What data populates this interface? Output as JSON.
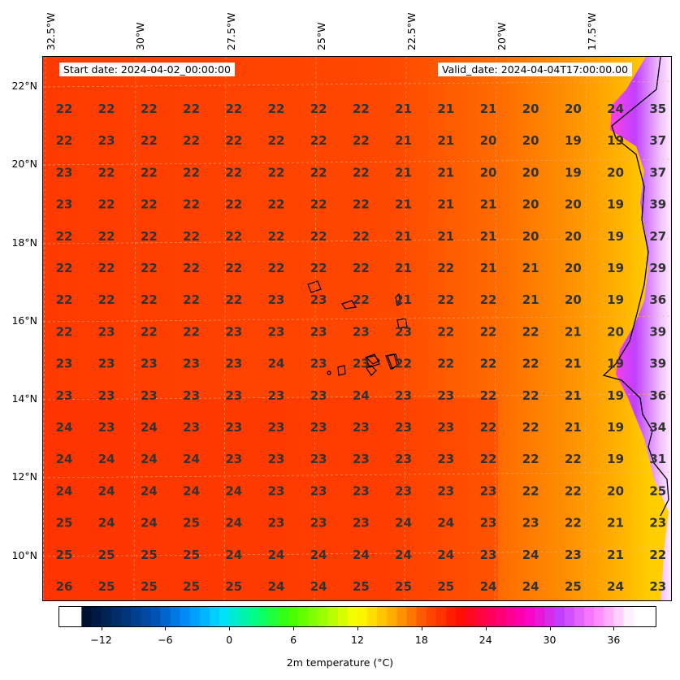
{
  "header": {
    "start_date": "Start date: 2024-04-02_00:00:00",
    "valid_date": "Valid_date: 2024-04-04T17:00:00.00"
  },
  "axes": {
    "lon_labels": [
      "32.5°W",
      "30°W",
      "27.5°W",
      "25°W",
      "22.5°W",
      "20°W",
      "17.5°W"
    ],
    "lat_labels": [
      "22°N",
      "20°N",
      "18°N",
      "16°N",
      "14°N",
      "12°N",
      "10°N"
    ]
  },
  "colorbar": {
    "label": "2m temperature ($^\\circ$C)",
    "label_display": "2m temperature (°C)",
    "ticks": [
      "−12",
      "−6",
      "0",
      "6",
      "12",
      "18",
      "24",
      "30",
      "36"
    ],
    "tick_values": [
      -12,
      -6,
      0,
      6,
      12,
      18,
      24,
      30,
      36
    ],
    "range": [
      -16,
      40
    ],
    "colors": [
      "#001030",
      "#003070",
      "#0050b0",
      "#0090ff",
      "#00e0ff",
      "#00ff80",
      "#40ff00",
      "#a0ff00",
      "#ffff00",
      "#ffb000",
      "#ff5000",
      "#ff1000",
      "#ff0060",
      "#ff00c0",
      "#c040ff",
      "#ff80ff",
      "#fff0ff"
    ]
  },
  "grid_values": {
    "rows": [
      [
        "22",
        "22",
        "22",
        "22",
        "22",
        "22",
        "22",
        "22",
        "21",
        "21",
        "21",
        "20",
        "20",
        "24",
        "35"
      ],
      [
        "22",
        "23",
        "22",
        "22",
        "22",
        "22",
        "22",
        "22",
        "21",
        "21",
        "20",
        "20",
        "19",
        "19",
        "37"
      ],
      [
        "23",
        "22",
        "22",
        "22",
        "22",
        "22",
        "22",
        "22",
        "21",
        "21",
        "20",
        "20",
        "19",
        "20",
        "37"
      ],
      [
        "23",
        "22",
        "22",
        "22",
        "22",
        "22",
        "22",
        "22",
        "21",
        "21",
        "21",
        "20",
        "20",
        "19",
        "39"
      ],
      [
        "22",
        "22",
        "22",
        "22",
        "22",
        "22",
        "22",
        "22",
        "21",
        "21",
        "21",
        "20",
        "20",
        "19",
        "27"
      ],
      [
        "22",
        "22",
        "22",
        "22",
        "22",
        "22",
        "22",
        "22",
        "21",
        "22",
        "21",
        "21",
        "20",
        "19",
        "29"
      ],
      [
        "22",
        "22",
        "22",
        "22",
        "22",
        "23",
        "23",
        "22",
        "21",
        "22",
        "22",
        "21",
        "20",
        "19",
        "36"
      ],
      [
        "22",
        "23",
        "22",
        "22",
        "23",
        "23",
        "23",
        "23",
        "23",
        "22",
        "22",
        "22",
        "21",
        "20",
        "39"
      ],
      [
        "23",
        "23",
        "23",
        "23",
        "23",
        "24",
        "23",
        "23",
        "22",
        "22",
        "22",
        "22",
        "21",
        "19",
        "39"
      ],
      [
        "23",
        "23",
        "23",
        "23",
        "23",
        "23",
        "23",
        "24",
        "23",
        "23",
        "22",
        "22",
        "21",
        "19",
        "36"
      ],
      [
        "24",
        "23",
        "24",
        "23",
        "23",
        "23",
        "23",
        "23",
        "23",
        "23",
        "22",
        "22",
        "21",
        "19",
        "34"
      ],
      [
        "24",
        "24",
        "24",
        "24",
        "23",
        "23",
        "23",
        "23",
        "23",
        "23",
        "22",
        "22",
        "22",
        "19",
        "31"
      ],
      [
        "24",
        "24",
        "24",
        "24",
        "24",
        "23",
        "23",
        "23",
        "23",
        "23",
        "23",
        "22",
        "22",
        "20",
        "25"
      ],
      [
        "25",
        "24",
        "24",
        "25",
        "24",
        "23",
        "23",
        "23",
        "24",
        "24",
        "23",
        "23",
        "22",
        "21",
        "23"
      ],
      [
        "25",
        "25",
        "25",
        "25",
        "24",
        "24",
        "24",
        "24",
        "24",
        "24",
        "23",
        "24",
        "23",
        "21",
        "22"
      ],
      [
        "26",
        "25",
        "25",
        "25",
        "25",
        "24",
        "24",
        "25",
        "25",
        "25",
        "24",
        "24",
        "25",
        "24",
        "23"
      ]
    ]
  },
  "colors": {
    "ocean_main": "#ff3a00",
    "ocean_warm": "#ff5a00",
    "coastal_band": "#ff9a00",
    "coastal_yellow": "#ffc800",
    "land_hot": "#ff60ff",
    "value_text": "#333333"
  }
}
